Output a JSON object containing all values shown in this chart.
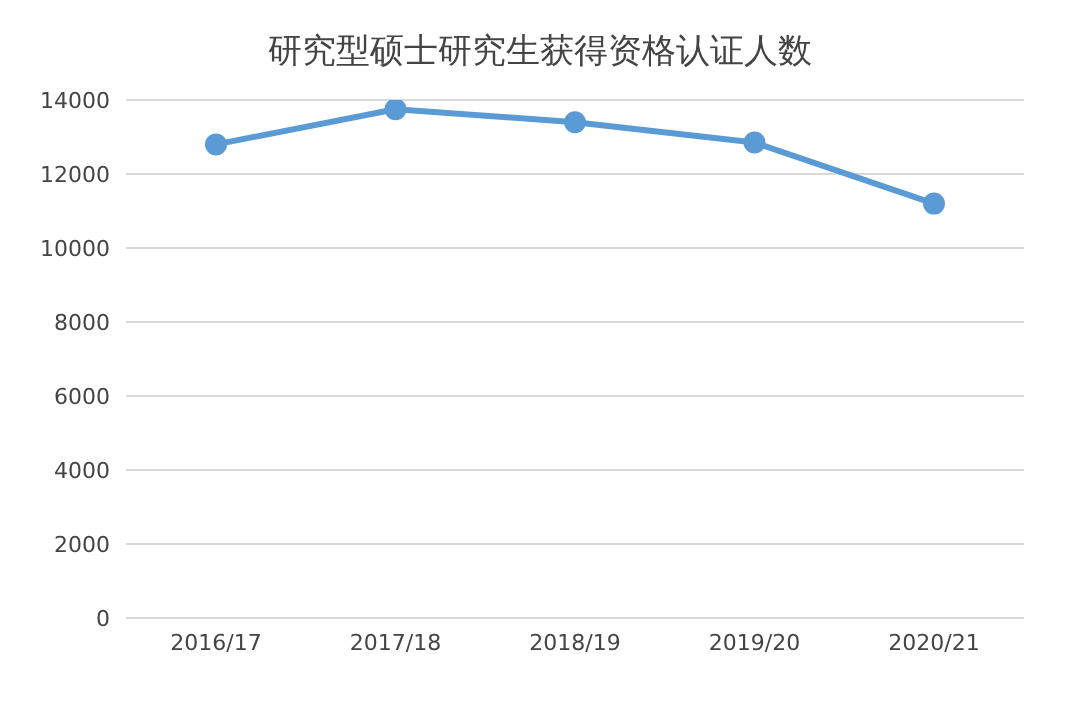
{
  "chart_data": {
    "type": "line",
    "title": "研究型硕士研究生获得资格认证人数",
    "categories": [
      "2016/17",
      "2017/18",
      "2018/19",
      "2019/20",
      "2020/21"
    ],
    "series": [
      {
        "color": "#5b9bd5",
        "values": [
          12800,
          13750,
          13400,
          12850,
          11200
        ]
      }
    ],
    "ylim": [
      0,
      14000
    ],
    "yticks": [
      0,
      2000,
      4000,
      6000,
      8000,
      10000,
      12000,
      14000
    ],
    "grid": "y",
    "marker": "circle",
    "line_style": "solid"
  }
}
